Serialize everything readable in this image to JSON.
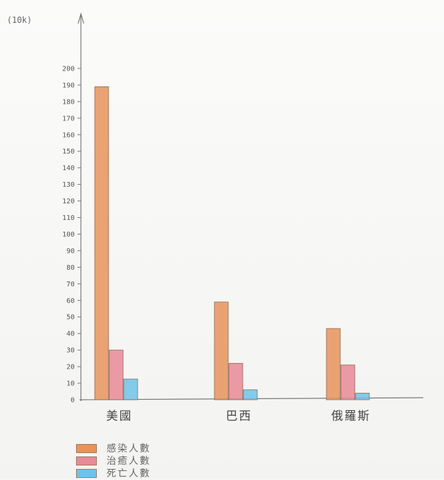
{
  "chart_data": {
    "type": "bar",
    "unit_label": "(10k)",
    "categories": [
      "美國",
      "巴西",
      "俄羅斯"
    ],
    "series": [
      {
        "name": "感染人數",
        "color": "#e8935a",
        "values": [
          189,
          59,
          43
        ]
      },
      {
        "name": "治癒人數",
        "color": "#e98a97",
        "values": [
          30,
          22,
          21
        ]
      },
      {
        "name": "死亡人數",
        "color": "#6ec3e8",
        "values": [
          12.5,
          6,
          4
        ]
      }
    ],
    "y_ticks": [
      0,
      10,
      20,
      30,
      40,
      50,
      60,
      70,
      80,
      90,
      100,
      110,
      120,
      130,
      140,
      150,
      160,
      170,
      180,
      190,
      200
    ],
    "y_tick_labels": [
      "0",
      "10",
      "20",
      "30",
      "40",
      "50",
      "60",
      "70",
      "80",
      "90",
      "100",
      "110",
      "120",
      "130",
      "140",
      "150",
      "160",
      "170",
      "180",
      "190",
      "200"
    ],
    "ylim": [
      0,
      210
    ],
    "grid": false,
    "legend_placement": "bottom-left"
  }
}
